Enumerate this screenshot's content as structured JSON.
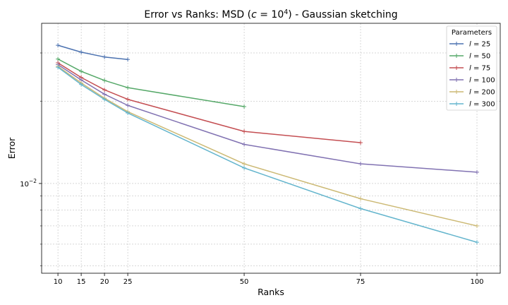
{
  "chart_data": {
    "type": "line",
    "title": "Error vs Ranks: MSD (c = 10^4) - Gaussian sketching",
    "title_parts": {
      "prefix": "Error vs Ranks: MSD (",
      "c_symbol": "c",
      "equals": " = 10",
      "exponent": "4",
      "suffix": ") - Gaussian sketching"
    },
    "xlabel": "Ranks",
    "ylabel": "Error",
    "x_scale": "linear",
    "y_scale": "log",
    "xlim": [
      6.5,
      105
    ],
    "ylim": [
      0.0047,
      0.0385
    ],
    "x_ticks": [
      10,
      15,
      20,
      25,
      50,
      75,
      100
    ],
    "y_major_ticks": [
      {
        "value": 0.01,
        "base": "10",
        "exponent": "−2"
      }
    ],
    "y_minor_ticks": [
      0.005,
      0.006,
      0.007,
      0.008,
      0.009,
      0.02,
      0.03
    ],
    "grid": true,
    "legend": {
      "title": "Parameters",
      "placement": "top-right"
    },
    "series": [
      {
        "name": "l = 25",
        "name_var": "l",
        "name_value": "= 25",
        "color": "#4c72b0",
        "x": [
          10,
          15,
          20,
          25
        ],
        "values": [
          0.032,
          0.0302,
          0.029,
          0.0284
        ]
      },
      {
        "name": "l = 50",
        "name_var": "l",
        "name_value": "= 50",
        "color": "#55a868",
        "x": [
          10,
          15,
          20,
          25,
          50
        ],
        "values": [
          0.0285,
          0.0257,
          0.0238,
          0.0224,
          0.0191
        ]
      },
      {
        "name": "l = 75",
        "name_var": "l",
        "name_value": "= 75",
        "color": "#c44e52",
        "x": [
          10,
          15,
          20,
          25,
          50,
          75
        ],
        "values": [
          0.0276,
          0.0244,
          0.022,
          0.0203,
          0.0155,
          0.0141
        ]
      },
      {
        "name": "l = 100",
        "name_var": "l",
        "name_value": "= 100",
        "color": "#8172b2",
        "x": [
          10,
          15,
          20,
          25,
          50,
          75,
          100
        ],
        "values": [
          0.0272,
          0.0239,
          0.0212,
          0.0193,
          0.0139,
          0.0118,
          0.011
        ]
      },
      {
        "name": "l = 200",
        "name_var": "l",
        "name_value": "= 200",
        "color": "#ccb974",
        "x": [
          10,
          15,
          20,
          25,
          50,
          75,
          100
        ],
        "values": [
          0.0268,
          0.0233,
          0.0205,
          0.0183,
          0.0118,
          0.0088,
          0.007
        ]
      },
      {
        "name": "l = 300",
        "name_var": "l",
        "name_value": "= 300",
        "color": "#64b5cd",
        "x": [
          10,
          15,
          20,
          25,
          50,
          75,
          100
        ],
        "values": [
          0.0266,
          0.023,
          0.0203,
          0.0181,
          0.0114,
          0.0081,
          0.0061
        ]
      }
    ]
  }
}
